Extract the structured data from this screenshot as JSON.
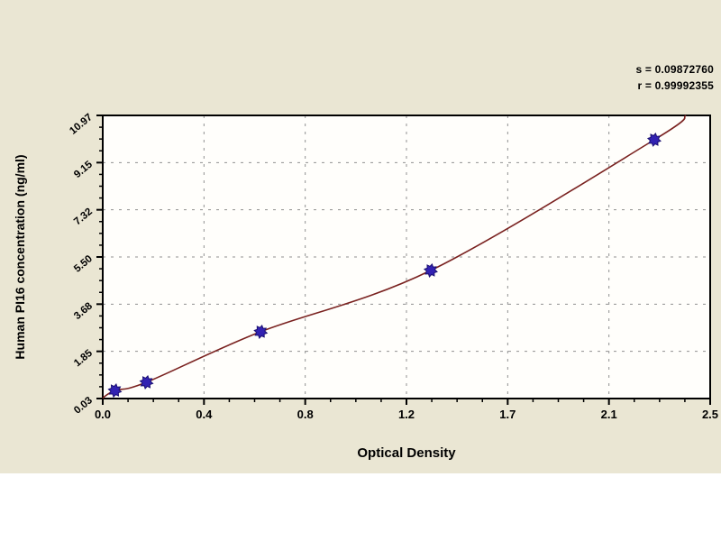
{
  "page": {
    "background_color": "#eae6d3",
    "margin_color": "#ffffff"
  },
  "annotation": {
    "s_line": "s = 0.09872760",
    "r_line": "r = 0.99992355"
  },
  "chart_data": {
    "type": "scatter",
    "title": "",
    "xlabel": "Optical Density",
    "ylabel": "Human PI16 concentration (ng/ml)",
    "xlim": [
      0,
      2.5
    ],
    "ylim": [
      0.03,
      10.97
    ],
    "x_ticks": {
      "values": [
        0,
        0.41667,
        0.83333,
        1.25,
        1.66667,
        2.08333,
        2.5
      ],
      "labels": [
        "0.0",
        "0.4",
        "0.8",
        "1.2",
        "1.7",
        "2.1",
        "2.5"
      ]
    },
    "y_ticks": {
      "values": [
        0.03,
        1.85333,
        3.67667,
        5.5,
        7.32333,
        9.14667,
        10.97
      ],
      "labels": [
        "0.03",
        "1.85",
        "3.68",
        "5.50",
        "7.32",
        "9.15",
        "10.97"
      ]
    },
    "minor_divisions": 4,
    "grid": {
      "show": true,
      "style": "dashed",
      "color": "#909090"
    },
    "legend": {
      "show": false
    },
    "colors": {
      "plot_bg": "#fffefb",
      "frame": "#000000",
      "curve": "#7a2220",
      "marker": "#3222b2",
      "marker_edge": "#1c1173"
    },
    "series": [
      {
        "name": "standard-points",
        "marker": "star",
        "points": [
          {
            "od": 0.05,
            "conc": 0.34
          },
          {
            "od": 0.18,
            "conc": 0.66
          },
          {
            "od": 0.65,
            "conc": 2.61
          },
          {
            "od": 1.35,
            "conc": 4.98
          },
          {
            "od": 2.27,
            "conc": 10.03
          }
        ]
      }
    ],
    "fit_curve": {
      "points": [
        {
          "od": 0.0,
          "conc": 0.05
        },
        {
          "od": 0.05,
          "conc": 0.34
        },
        {
          "od": 0.18,
          "conc": 0.66
        },
        {
          "od": 0.65,
          "conc": 2.61
        },
        {
          "od": 1.35,
          "conc": 4.98
        },
        {
          "od": 2.27,
          "conc": 10.03
        },
        {
          "od": 2.4,
          "conc": 10.97
        }
      ]
    },
    "fit_stats": {
      "s": "0.09872760",
      "r": "0.99992355"
    }
  }
}
